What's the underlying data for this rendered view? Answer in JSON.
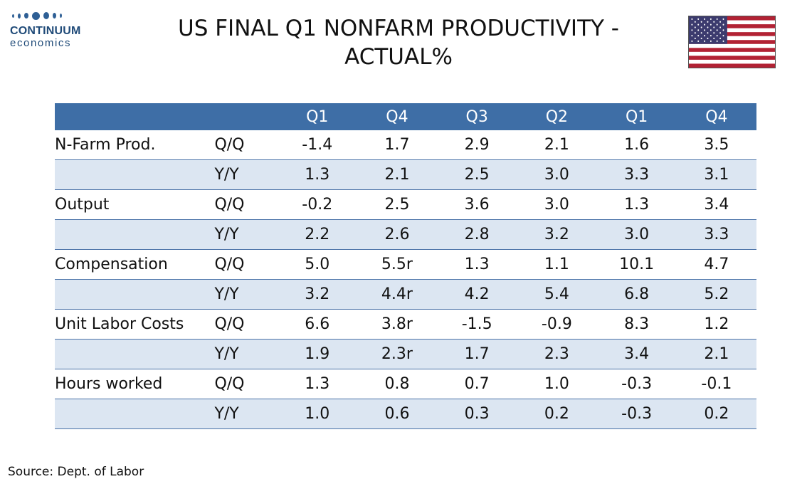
{
  "logo": {
    "name": "CONTINUUM",
    "sub": "economics"
  },
  "title_line1": "US FINAL Q1 NONFARM PRODUCTIVITY -",
  "title_line2": "ACTUAL%",
  "flag_icon": "us-flag-icon",
  "colors": {
    "header": "#3e6ea6",
    "band": "#dce6f2",
    "rule": "#4a72a8"
  },
  "table": {
    "headers": [
      "Q1",
      "Q4",
      "Q3",
      "Q2",
      "Q1",
      "Q4"
    ],
    "rows": [
      {
        "label": "N-Farm Prod.",
        "measure": "Q/Q",
        "values": [
          "-1.4",
          "1.7",
          "2.9",
          "2.1",
          "1.6",
          "3.5"
        ]
      },
      {
        "label": "",
        "measure": "Y/Y",
        "values": [
          "1.3",
          "2.1",
          "2.5",
          "3.0",
          "3.3",
          "3.1"
        ]
      },
      {
        "label": "Output",
        "measure": "Q/Q",
        "values": [
          "-0.2",
          "2.5",
          "3.6",
          "3.0",
          "1.3",
          "3.4"
        ]
      },
      {
        "label": "",
        "measure": "Y/Y",
        "values": [
          "2.2",
          "2.6",
          "2.8",
          "3.2",
          "3.0",
          "3.3"
        ]
      },
      {
        "label": "Compensation",
        "measure": "Q/Q",
        "values": [
          "5.0",
          "5.5r",
          "1.3",
          "1.1",
          "10.1",
          "4.7"
        ]
      },
      {
        "label": "",
        "measure": "Y/Y",
        "values": [
          "3.2",
          "4.4r",
          "4.2",
          "5.4",
          "6.8",
          "5.2"
        ]
      },
      {
        "label": "Unit Labor Costs",
        "measure": "Q/Q",
        "values": [
          "6.6",
          "3.8r",
          "-1.5",
          "-0.9",
          "8.3",
          "1.2"
        ]
      },
      {
        "label": "",
        "measure": "Y/Y",
        "values": [
          "1.9",
          "2.3r",
          "1.7",
          "2.3",
          "3.4",
          "2.1"
        ]
      },
      {
        "label": "Hours worked",
        "measure": "Q/Q",
        "values": [
          "1.3",
          "0.8",
          "0.7",
          "1.0",
          "-0.3",
          "-0.1"
        ]
      },
      {
        "label": "",
        "measure": "Y/Y",
        "values": [
          "1.0",
          "0.6",
          "0.3",
          "0.2",
          "-0.3",
          "0.2"
        ]
      }
    ]
  },
  "source": "Source: Dept. of Labor"
}
